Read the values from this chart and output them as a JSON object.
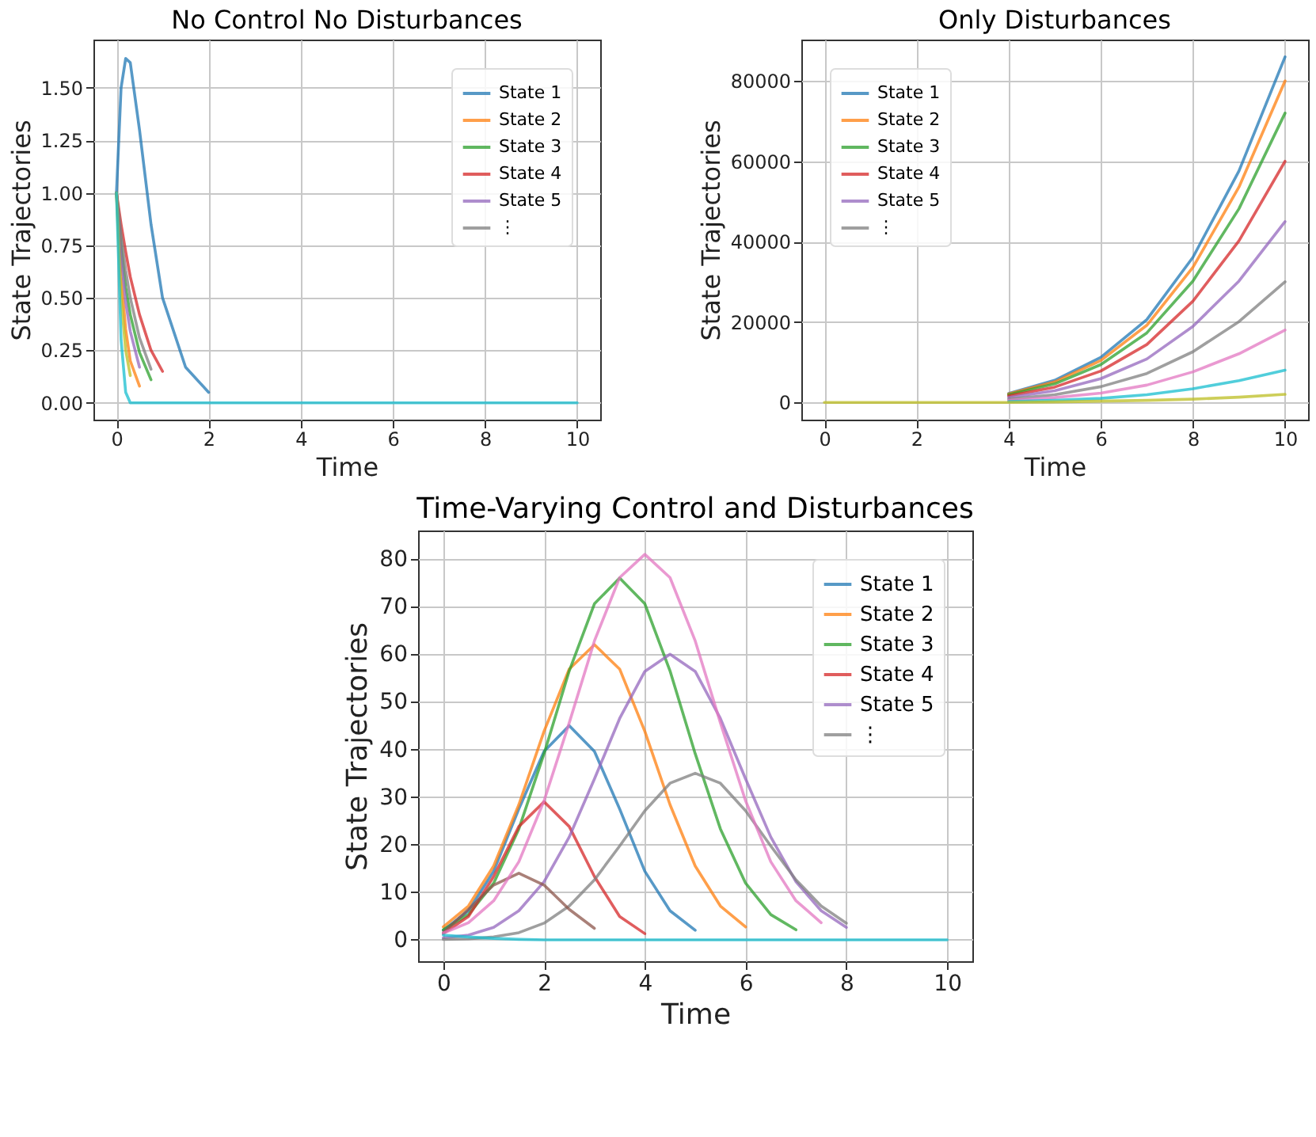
{
  "chart_data": [
    {
      "type": "line",
      "title": "No Control No Disturbances",
      "xlabel": "Time",
      "ylabel": "State Trajectories",
      "grid": true,
      "legend": "top right",
      "x": [
        0,
        0.1,
        0.2,
        0.3,
        0.5,
        0.75,
        1,
        1.5,
        2,
        2.5,
        3,
        4,
        6,
        8,
        10
      ],
      "xlim": [
        -0.5,
        10.5
      ],
      "xticks": [
        0,
        2,
        4,
        6,
        8,
        10
      ],
      "ylim": [
        -0.08,
        1.73
      ],
      "yticks": [
        {
          "value": 0,
          "label": "0.00"
        },
        {
          "value": 0.25,
          "label": "0.25"
        },
        {
          "value": 0.5,
          "label": "0.50"
        },
        {
          "value": 0.75,
          "label": "0.75"
        },
        {
          "value": 1,
          "label": "1.00"
        },
        {
          "value": 1.25,
          "label": "1.25"
        },
        {
          "value": 1.5,
          "label": "1.50"
        }
      ],
      "series": [
        {
          "name": "State 1",
          "color": "#1f77b4",
          "values": [
            1,
            1.5,
            1.64,
            1.62,
            1.3,
            0.85,
            0.5,
            0.17,
            0.05,
            null,
            null,
            null,
            null,
            null,
            null
          ]
        },
        {
          "name": "State 2",
          "color": "#ff7f0e",
          "values": [
            1,
            0.6,
            0.35,
            0.2,
            0.08,
            null,
            null,
            null,
            null,
            null,
            null,
            null,
            null,
            null,
            null
          ]
        },
        {
          "name": "State 3",
          "color": "#2ca02c",
          "values": [
            1,
            0.75,
            0.55,
            0.42,
            0.24,
            0.11,
            null,
            null,
            null,
            null,
            null,
            null,
            null,
            null,
            null
          ]
        },
        {
          "name": "State 4",
          "color": "#d62728",
          "values": [
            1,
            0.85,
            0.72,
            0.6,
            0.42,
            0.25,
            0.15,
            null,
            null,
            null,
            null,
            null,
            null,
            null,
            null
          ]
        },
        {
          "name": "State 5",
          "color": "#9467bd",
          "values": [
            1,
            0.7,
            0.48,
            0.34,
            0.17,
            null,
            null,
            null,
            null,
            null,
            null,
            null,
            null,
            null,
            null
          ]
        },
        {
          "name": "⋮",
          "color": "#7f7f7f",
          "values": [
            1,
            0.8,
            0.63,
            0.5,
            0.31,
            0.16,
            null,
            null,
            null,
            null,
            null,
            null,
            null,
            null,
            null
          ]
        },
        {
          "color": "#bcbd22",
          "values": [
            1,
            0.5,
            0.25,
            0.13,
            null,
            null,
            null,
            null,
            null,
            null,
            null,
            null,
            null,
            null,
            null
          ]
        },
        {
          "color": "#17becf",
          "values": [
            1,
            0.3,
            0.05,
            0,
            0,
            0,
            0,
            0,
            0,
            0,
            0,
            0,
            0,
            0,
            0
          ]
        }
      ]
    },
    {
      "type": "line",
      "title": "Only Disturbances",
      "xlabel": "Time",
      "ylabel": "State Trajectories",
      "grid": true,
      "legend": "top left",
      "x": [
        0,
        1,
        2,
        3,
        4,
        5,
        6,
        7,
        8,
        9,
        10
      ],
      "xlim": [
        -0.5,
        10.5
      ],
      "xticks": [
        0,
        2,
        4,
        6,
        8,
        10
      ],
      "ylim": [
        -4300,
        90300
      ],
      "yticks": [
        0,
        20000,
        40000,
        60000,
        80000
      ],
      "series": [
        {
          "name": "State 1",
          "color": "#1f77b4",
          "values": [
            null,
            null,
            null,
            null,
            2200,
            5500,
            11200,
            20600,
            36100,
            57600,
            86000
          ]
        },
        {
          "name": "State 2",
          "color": "#ff7f0e",
          "values": [
            null,
            null,
            null,
            null,
            2100,
            5100,
            10400,
            19200,
            33600,
            53600,
            80000
          ]
        },
        {
          "name": "State 3",
          "color": "#2ca02c",
          "values": [
            null,
            null,
            null,
            null,
            1900,
            4600,
            9400,
            17300,
            30200,
            48200,
            72000
          ]
        },
        {
          "name": "State 4",
          "color": "#d62728",
          "values": [
            null,
            null,
            null,
            null,
            1600,
            3800,
            7800,
            14400,
            25200,
            40200,
            60000
          ]
        },
        {
          "name": "State 5",
          "color": "#9467bd",
          "values": [
            null,
            null,
            null,
            null,
            1200,
            2900,
            5900,
            10800,
            18900,
            30200,
            45000
          ]
        },
        {
          "name": "⋮",
          "color": "#7f7f7f",
          "values": [
            null,
            null,
            null,
            null,
            800,
            1900,
            3900,
            7200,
            12600,
            20100,
            30000
          ]
        },
        {
          "color": "#e377c2",
          "values": [
            null,
            null,
            null,
            null,
            500,
            1200,
            2300,
            4300,
            7600,
            12100,
            18000
          ]
        },
        {
          "color": "#17becf",
          "values": [
            null,
            null,
            null,
            null,
            200,
            500,
            1000,
            1900,
            3400,
            5400,
            8000
          ]
        },
        {
          "color": "#bcbd22",
          "values": [
            0,
            0,
            0,
            0,
            0,
            100,
            300,
            500,
            800,
            1300,
            2000
          ]
        }
      ]
    },
    {
      "type": "line",
      "title": "Time-Varying Control and Disturbances",
      "xlabel": "Time",
      "ylabel": "State Trajectories",
      "grid": true,
      "legend": "top right",
      "x": [
        0,
        0.5,
        1,
        1.5,
        2,
        2.5,
        3,
        3.5,
        4,
        4.5,
        5,
        5.5,
        6,
        6.5,
        7,
        7.5,
        8,
        8.5,
        9,
        9.5,
        10
      ],
      "xlim": [
        -0.5,
        10.5
      ],
      "xticks": [
        0,
        2,
        4,
        6,
        8,
        10
      ],
      "ylim": [
        -4.5,
        86
      ],
      "yticks": [
        0,
        10,
        20,
        30,
        40,
        50,
        60,
        70,
        80
      ],
      "series": [
        {
          "name": "State 1",
          "color": "#1f77b4",
          "values": [
            2,
            6.1,
            14.4,
            27.5,
            39.6,
            45,
            39.6,
            27.5,
            14.4,
            6.1,
            2,
            null,
            null,
            null,
            null,
            null,
            null,
            null,
            null,
            null,
            null
          ]
        },
        {
          "name": "State 2",
          "color": "#ff7f0e",
          "values": [
            2.7,
            7.1,
            15.5,
            28.4,
            43.8,
            56.9,
            62,
            56.9,
            43.8,
            28.4,
            15.5,
            7.1,
            2.7,
            null,
            null,
            null,
            null,
            null,
            null,
            null,
            null
          ]
        },
        {
          "name": "State 3",
          "color": "#2ca02c",
          "values": [
            2.1,
            5.3,
            11.9,
            23.3,
            39.1,
            56.5,
            70.6,
            76,
            70.6,
            56.5,
            39.1,
            23.3,
            11.9,
            5.3,
            2.1,
            null,
            null,
            null,
            null,
            null,
            null
          ]
        },
        {
          "name": "State 4",
          "color": "#d62728",
          "values": [
            1.3,
            4.9,
            13.3,
            23.8,
            29,
            23.8,
            13.3,
            4.9,
            1.3,
            null,
            null,
            null,
            null,
            null,
            null,
            null,
            null,
            null,
            null,
            null,
            null
          ]
        },
        {
          "name": "State 5",
          "color": "#9467bd",
          "values": [
            0.4,
            1,
            2.6,
            6.1,
            12.2,
            21.6,
            33.8,
            46.5,
            56.4,
            60,
            56.4,
            46.5,
            33.8,
            21.6,
            12.2,
            6.1,
            2.6,
            null,
            null,
            null,
            null
          ]
        },
        {
          "name": "⋮",
          "color": "#7f7f7f",
          "values": [
            0.1,
            0.2,
            0.6,
            1.5,
            3.5,
            7.1,
            12.6,
            19.7,
            27.1,
            32.9,
            35,
            32.9,
            27.1,
            19.7,
            12.6,
            7.1,
            3.5,
            null,
            null,
            null,
            null
          ]
        },
        {
          "color": "#8c564b",
          "values": [
            1.5,
            6.4,
            11.5,
            14,
            11.5,
            6.4,
            2.4,
            null,
            null,
            null,
            null,
            null,
            null,
            null,
            null,
            null,
            null,
            null,
            null,
            null,
            null
          ]
        },
        {
          "color": "#e377c2",
          "values": [
            1.4,
            3.6,
            8.2,
            16.4,
            29.2,
            45.6,
            62.8,
            76.1,
            81,
            76.1,
            62.8,
            45.6,
            29.2,
            16.4,
            8.2,
            3.6,
            null,
            null,
            null,
            null,
            null
          ]
        },
        {
          "color": "#17becf",
          "values": [
            1,
            0.6,
            0.3,
            0.1,
            0,
            0,
            0,
            0,
            0,
            0,
            0,
            0,
            0,
            0,
            0,
            0,
            0,
            0,
            0,
            0,
            0
          ]
        }
      ]
    }
  ]
}
